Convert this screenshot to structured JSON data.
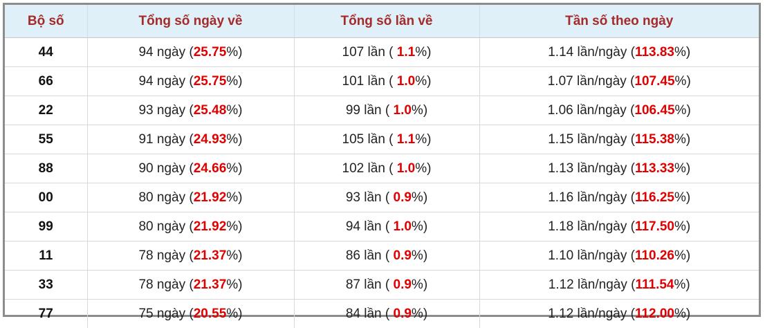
{
  "table": {
    "header": [
      "Bộ số",
      "Tổng số ngày về",
      "Tổng số lần về",
      "Tần số theo ngày"
    ],
    "rows": [
      [
        "44",
        [
          "94 ngày (",
          "25.75",
          "%)"
        ],
        [
          "107 lần ( ",
          "1.1",
          "%)"
        ],
        [
          "1.14 lần/ngày (",
          "113.83",
          "%)"
        ]
      ],
      [
        "66",
        [
          "94 ngày (",
          "25.75",
          "%)"
        ],
        [
          "101 lần ( ",
          "1.0",
          "%)"
        ],
        [
          "1.07 lần/ngày (",
          "107.45",
          "%)"
        ]
      ],
      [
        "22",
        [
          "93 ngày (",
          "25.48",
          "%)"
        ],
        [
          "99 lần ( ",
          "1.0",
          "%)"
        ],
        [
          "1.06 lần/ngày (",
          "106.45",
          "%)"
        ]
      ],
      [
        "55",
        [
          "91 ngày (",
          "24.93",
          "%)"
        ],
        [
          "105 lần ( ",
          "1.1",
          "%)"
        ],
        [
          "1.15 lần/ngày (",
          "115.38",
          "%)"
        ]
      ],
      [
        "88",
        [
          "90 ngày (",
          "24.66",
          "%)"
        ],
        [
          "102 lần ( ",
          "1.0",
          "%)"
        ],
        [
          "1.13 lần/ngày (",
          "113.33",
          "%)"
        ]
      ],
      [
        "00",
        [
          "80 ngày (",
          "21.92",
          "%)"
        ],
        [
          "93 lần ( ",
          "0.9",
          "%)"
        ],
        [
          "1.16 lần/ngày (",
          "116.25",
          "%)"
        ]
      ],
      [
        "99",
        [
          "80 ngày (",
          "21.92",
          "%)"
        ],
        [
          "94 lần ( ",
          "1.0",
          "%)"
        ],
        [
          "1.18 lần/ngày (",
          "117.50",
          "%)"
        ]
      ],
      [
        "11",
        [
          "78 ngày (",
          "21.37",
          "%)"
        ],
        [
          "86 lần ( ",
          "0.9",
          "%)"
        ],
        [
          "1.10 lần/ngày (",
          "110.26",
          "%)"
        ]
      ],
      [
        "33",
        [
          "78 ngày (",
          "21.37",
          "%)"
        ],
        [
          "87 lần ( ",
          "0.9",
          "%)"
        ],
        [
          "1.12 lần/ngày (",
          "111.54",
          "%)"
        ]
      ],
      [
        "77",
        [
          "75 ngày (",
          "20.55",
          "%)"
        ],
        [
          "84 lần ( ",
          "0.9",
          "%)"
        ],
        [
          "1.12 lần/ngày (",
          "112.00",
          "%)"
        ]
      ]
    ]
  }
}
